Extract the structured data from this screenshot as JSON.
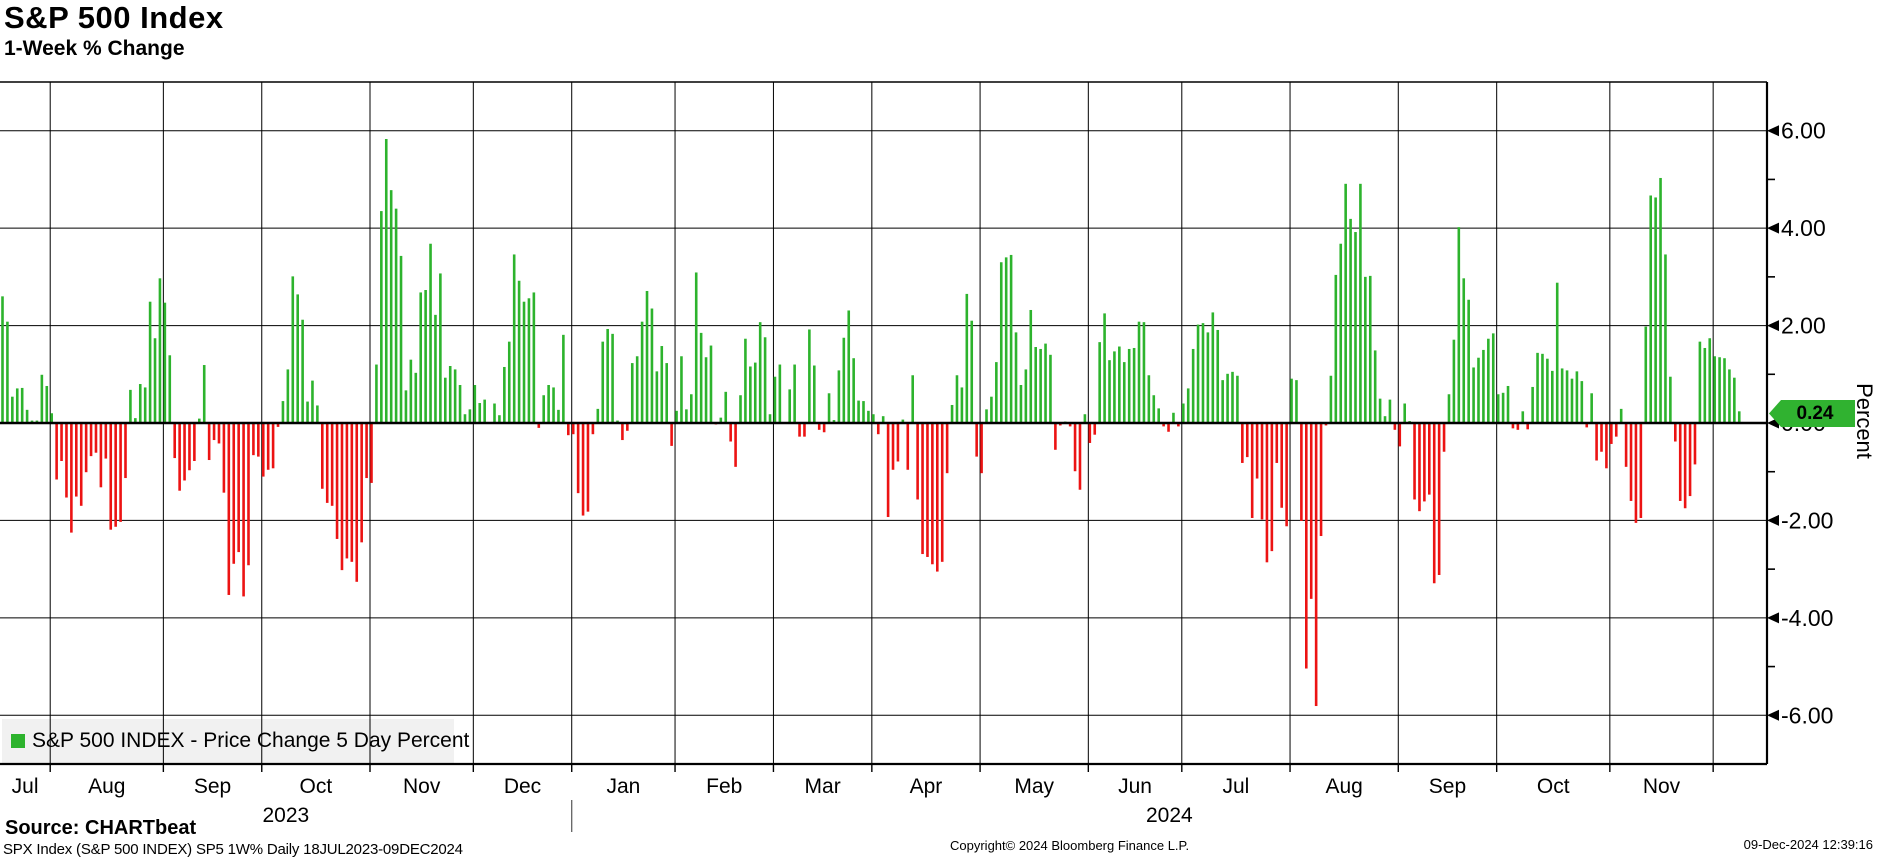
{
  "header": {
    "title": "S&P 500 Index",
    "subtitle": "1-Week % Change"
  },
  "legend": {
    "label": "S&P 500 INDEX - Price Change 5 Day Percent"
  },
  "axis": {
    "ylabel": "Percent",
    "last_badge": "0.24"
  },
  "footer": {
    "source": "Source: CHARTbeat",
    "meta": "SPX Index (S&P 500 INDEX) SP5 1W%  Daily 18JUL2023-09DEC2024",
    "copyright": "Copyright© 2024 Bloomberg Finance L.P.",
    "timestamp": "09-Dec-2024 12:39:16"
  },
  "chart_data": {
    "type": "bar",
    "title": "S&P 500 Index",
    "subtitle": "1-Week % Change",
    "ylabel": "Percent",
    "ylim": [
      -7,
      7
    ],
    "yticks_major": [
      6,
      4,
      2,
      0,
      -2,
      -4,
      -6
    ],
    "ytick_labels": [
      "6.00",
      "4.00",
      "2.00",
      "0.00",
      "-2.00",
      "-4.00",
      "-6.00"
    ],
    "yticks_minor": [
      5,
      3,
      1,
      -1,
      -3,
      -5
    ],
    "grid": true,
    "legend_position": "bottom-left",
    "last_value": 0.24,
    "colors": {
      "positive": "#2db32d",
      "negative": "#ec1313",
      "badge": "#30b230",
      "legend_bg": "#f1f1f1"
    },
    "years": [
      {
        "label": "2023",
        "months": 6
      },
      {
        "label": "2024",
        "months": 12
      }
    ],
    "months": [
      {
        "label": "Jul",
        "days": 10
      },
      {
        "label": "Aug",
        "days": 23
      },
      {
        "label": "Sep",
        "days": 20
      },
      {
        "label": "Oct",
        "days": 22
      },
      {
        "label": "Nov",
        "days": 21
      },
      {
        "label": "Dec",
        "days": 20
      },
      {
        "label": "Jan",
        "days": 21
      },
      {
        "label": "Feb",
        "days": 20
      },
      {
        "label": "Mar",
        "days": 20
      },
      {
        "label": "Apr",
        "days": 22
      },
      {
        "label": "May",
        "days": 22
      },
      {
        "label": "Jun",
        "days": 19
      },
      {
        "label": "Jul",
        "days": 22
      },
      {
        "label": "Aug",
        "days": 22
      },
      {
        "label": "Sep",
        "days": 20
      },
      {
        "label": "Oct",
        "days": 23
      },
      {
        "label": "Nov",
        "days": 21
      },
      {
        "label": "",
        "days": 6
      }
    ],
    "values": [
      2.6,
      2.08,
      0.54,
      0.71,
      0.72,
      0.27,
      0.05,
      0.05,
      0.99,
      0.76,
      0.2,
      -1.16,
      -0.78,
      -1.53,
      -2.25,
      -1.51,
      -1.7,
      -1.01,
      -0.68,
      -0.61,
      -1.32,
      -0.73,
      -2.19,
      -2.13,
      -2.03,
      -1.13,
      0.68,
      0.1,
      0.8,
      0.73,
      2.49,
      1.74,
      2.97,
      2.47,
      1.39,
      -0.72,
      -1.39,
      -1.18,
      -0.97,
      -0.78,
      0.09,
      1.19,
      -0.76,
      -0.35,
      -0.42,
      -1.43,
      -3.53,
      -2.89,
      -2.65,
      -3.56,
      -2.92,
      -0.66,
      -0.69,
      -1.1,
      -0.96,
      -0.93,
      -0.08,
      0.45,
      1.1,
      3.01,
      2.64,
      2.12,
      0.44,
      0.87,
      0.36,
      -1.35,
      -1.64,
      -1.7,
      -2.38,
      -3.02,
      -2.78,
      -2.85,
      -3.26,
      -2.45,
      -1.13,
      -1.23,
      1.2,
      4.35,
      5.83,
      4.78,
      4.4,
      3.43,
      0.67,
      1.3,
      1.03,
      2.68,
      2.73,
      3.68,
      2.22,
      3.07,
      0.93,
      1.17,
      1.1,
      0.78,
      0.18,
      0.28,
      0.78,
      0.41,
      0.48,
      -0.02,
      0.4,
      0.16,
      1.15,
      1.67,
      3.46,
      2.92,
      2.49,
      2.56,
      2.68,
      -0.1,
      0.57,
      0.78,
      0.73,
      0.27,
      1.81,
      -0.25,
      -0.23,
      -1.44,
      -1.9,
      -1.82,
      -0.23,
      0.29,
      1.67,
      1.93,
      1.83,
      0.05,
      -0.35,
      -0.16,
      1.23,
      1.37,
      2.08,
      2.71,
      2.35,
      1.06,
      1.58,
      1.23,
      -0.47,
      0.25,
      1.37,
      0.28,
      0.59,
      3.09,
      1.85,
      1.35,
      1.59,
      -0.03,
      0.11,
      0.64,
      -0.38,
      -0.9,
      0.57,
      1.73,
      1.16,
      1.24,
      2.07,
      1.76,
      0.18,
      0.95,
      1.2,
      0.01,
      0.69,
      1.2,
      -0.28,
      -0.28,
      1.92,
      1.18,
      -0.14,
      -0.19,
      0.61,
      0.06,
      1.08,
      1.75,
      2.31,
      1.33,
      0.46,
      0.45,
      0.25,
      0.18,
      -0.23,
      0.14,
      -1.93,
      -0.96,
      -0.79,
      0.07,
      -0.96,
      0.98,
      -1.57,
      -2.69,
      -2.75,
      -2.9,
      -3.05,
      -2.85,
      -1.03,
      0.37,
      0.98,
      0.73,
      2.65,
      2.1,
      -0.69,
      -1.03,
      0.28,
      0.54,
      1.25,
      3.3,
      3.4,
      3.45,
      1.86,
      0.78,
      1.1,
      2.32,
      1.56,
      1.52,
      1.63,
      1.4,
      -0.55,
      -0.05,
      0.03,
      -0.07,
      -0.99,
      -1.37,
      0.18,
      -0.41,
      -0.24,
      1.66,
      2.25,
      1.29,
      1.47,
      1.57,
      1.25,
      1.52,
      1.54,
      2.08,
      2.07,
      0.98,
      0.57,
      0.3,
      -0.07,
      -0.18,
      0.21,
      -0.07,
      0.4,
      0.71,
      1.52,
      2.02,
      2.05,
      1.86,
      2.27,
      1.91,
      0.88,
      1.01,
      1.05,
      0.97,
      -0.82,
      -0.7,
      -1.95,
      -1.14,
      -1.98,
      -2.86,
      -2.63,
      -0.82,
      -1.74,
      -2.12,
      0.91,
      0.88,
      -2.01,
      -5.04,
      -3.61,
      -5.81,
      -2.32,
      -0.05,
      0.97,
      3.04,
      3.68,
      4.91,
      4.19,
      3.92,
      4.91,
      3.0,
      3.02,
      1.49,
      0.5,
      0.14,
      0.48,
      -0.14,
      -0.48,
      0.4,
      0.04,
      -1.57,
      -1.81,
      -1.61,
      -1.47,
      -3.29,
      -3.12,
      -0.59,
      0.59,
      1.71,
      4.02,
      2.97,
      2.53,
      1.14,
      1.34,
      1.5,
      1.73,
      1.84,
      0.59,
      0.62,
      0.76,
      -0.11,
      -0.14,
      0.24,
      -0.13,
      0.74,
      1.44,
      1.42,
      1.32,
      1.07,
      2.88,
      1.12,
      1.08,
      0.91,
      1.06,
      0.86,
      -0.09,
      0.61,
      -0.77,
      -0.59,
      -0.93,
      -0.43,
      -0.28,
      0.29,
      -0.9,
      -1.6,
      -2.05,
      -1.95,
      1.98,
      4.67,
      4.63,
      5.03,
      3.46,
      0.95,
      -0.38,
      -1.6,
      -1.75,
      -1.5,
      -0.85,
      1.67,
      1.54,
      1.74,
      1.37,
      1.35,
      1.33,
      1.1,
      0.93,
      0.24
    ]
  }
}
